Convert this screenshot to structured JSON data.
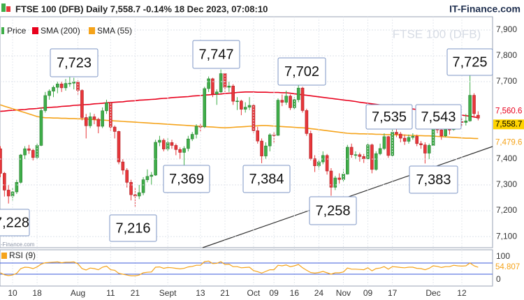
{
  "chart_data": {
    "type": "candlestick",
    "title": "FTSE 100 (DFB) Daily 7,558.7 -0.14% 18 Dec 2023, 07:08:10",
    "source": "IT-Finance.com",
    "watermark": "FTSE 100 (DFB)",
    "watermark_small": "-Finance.com",
    "price_name": "Price",
    "up_color": "#3fae49",
    "down_color": "#e8363a",
    "categories": [
      null,
      null,
      null,
      "10",
      null,
      null,
      null,
      null,
      null,
      "18",
      null,
      null,
      null,
      null,
      null,
      null,
      null,
      null,
      null,
      "Aug",
      null,
      null,
      null,
      null,
      null,
      null,
      null,
      "11",
      null,
      null,
      null,
      null,
      null,
      "21",
      null,
      null,
      null,
      null,
      null,
      null,
      null,
      "Sept",
      null,
      null,
      null,
      null,
      null,
      null,
      null,
      "13",
      null,
      null,
      null,
      null,
      null,
      "21",
      null,
      null,
      null,
      null,
      null,
      null,
      "Oct",
      null,
      null,
      null,
      null,
      "09",
      null,
      null,
      null,
      null,
      "16",
      null,
      null,
      null,
      null,
      null,
      "24",
      null,
      null,
      null,
      null,
      null,
      "Nov",
      null,
      null,
      null,
      null,
      null,
      "09",
      null,
      null,
      null,
      null,
      null,
      "17",
      null,
      null,
      null,
      null,
      null,
      null,
      null,
      null,
      null,
      "Dec",
      null,
      null,
      null,
      null,
      null,
      null,
      "12",
      null,
      null,
      null,
      null
    ],
    "open": [
      7440,
      7345,
      7280,
      7257,
      7273,
      7310,
      7416,
      7440,
      7434,
      7406,
      7453,
      7588,
      7646,
      7663,
      7678,
      7691,
      7676,
      7693,
      7694,
      7699,
      7666,
      7561,
      7529,
      7564,
      7554,
      7527,
      7587,
      7618,
      7524,
      7507,
      7389,
      7357,
      7310,
      7262,
      7257,
      7270,
      7320,
      7333,
      7338,
      7465,
      7473,
      7439,
      7464,
      7453,
      7437,
      7426,
      7441,
      7478,
      7496,
      7527,
      7525,
      7673,
      7711,
      7652,
      7660,
      7731,
      7678,
      7683,
      7624,
      7625,
      7593,
      7601,
      7608,
      7510,
      7470,
      7412,
      7451,
      7494,
      7492,
      7628,
      7620,
      7644,
      7599,
      7630,
      7675,
      7588,
      7499,
      7402,
      7374,
      7389,
      7414,
      7354,
      7291,
      7327,
      7321,
      7342,
      7446,
      7417,
      7417,
      7410,
      7401,
      7455,
      7360,
      7421,
      7441,
      7487,
      7414,
      7504,
      7497,
      7481,
      7469,
      7484,
      7488,
      7460,
      7455,
      7423,
      7453,
      7529,
      7513,
      7490,
      7515,
      7514,
      7555,
      7545,
      7542,
      7548,
      7647,
      7570
    ],
    "high": [
      7450,
      7350,
      7300,
      7290,
      7320,
      7420,
      7450,
      7455,
      7440,
      7460,
      7600,
      7660,
      7670,
      7685,
      7700,
      7700,
      7710,
      7723,
      7715,
      7705,
      7670,
      7575,
      7580,
      7575,
      7560,
      7600,
      7630,
      7620,
      7530,
      7510,
      7400,
      7365,
      7320,
      7290,
      7300,
      7330,
      7360,
      7350,
      7475,
      7490,
      7480,
      7480,
      7475,
      7460,
      7445,
      7450,
      7490,
      7505,
      7535,
      7540,
      7680,
      7720,
      7715,
      7670,
      7747,
      7735,
      7700,
      7690,
      7640,
      7630,
      7620,
      7640,
      7615,
      7525,
      7480,
      7465,
      7500,
      7505,
      7635,
      7650,
      7665,
      7650,
      7640,
      7702,
      7680,
      7595,
      7510,
      7415,
      7400,
      7430,
      7420,
      7365,
      7335,
      7345,
      7360,
      7455,
      7460,
      7430,
      7425,
      7420,
      7465,
      7460,
      7430,
      7460,
      7500,
      7490,
      7515,
      7535,
      7505,
      7495,
      7495,
      7500,
      7495,
      7470,
      7465,
      7460,
      7543,
      7535,
      7520,
      7525,
      7530,
      7565,
      7565,
      7560,
      7575,
      7725,
      7655,
      7585
    ],
    "low": [
      7330,
      7255,
      7228,
      7240,
      7265,
      7305,
      7400,
      7420,
      7395,
      7400,
      7450,
      7580,
      7630,
      7640,
      7655,
      7660,
      7665,
      7680,
      7670,
      7650,
      7550,
      7480,
      7520,
      7535,
      7500,
      7520,
      7575,
      7510,
      7480,
      7380,
      7340,
      7290,
      7240,
      7216,
      7245,
      7260,
      7310,
      7300,
      7335,
      7450,
      7430,
      7430,
      7440,
      7415,
      7400,
      7369,
      7430,
      7470,
      7480,
      7505,
      7520,
      7660,
      7640,
      7610,
      7655,
      7660,
      7660,
      7610,
      7590,
      7570,
      7580,
      7590,
      7500,
      7460,
      7384,
      7400,
      7430,
      7460,
      7490,
      7605,
      7610,
      7590,
      7590,
      7620,
      7580,
      7490,
      7395,
      7350,
      7360,
      7380,
      7340,
      7258,
      7280,
      7305,
      7310,
      7340,
      7405,
      7400,
      7390,
      7385,
      7395,
      7345,
      7355,
      7415,
      7435,
      7405,
      7410,
      7485,
      7465,
      7455,
      7460,
      7475,
      7450,
      7440,
      7383,
      7400,
      7450,
      7500,
      7475,
      7485,
      7495,
      7510,
      7530,
      7525,
      7530,
      7545,
      7560,
      7550
    ],
    "close": [
      7345,
      7280,
      7257,
      7273,
      7310,
      7416,
      7440,
      7434,
      7406,
      7453,
      7588,
      7646,
      7663,
      7678,
      7691,
      7676,
      7693,
      7694,
      7699,
      7666,
      7561,
      7529,
      7564,
      7554,
      7527,
      7587,
      7618,
      7524,
      7507,
      7389,
      7357,
      7310,
      7262,
      7257,
      7270,
      7320,
      7333,
      7338,
      7465,
      7473,
      7439,
      7464,
      7453,
      7437,
      7426,
      7441,
      7478,
      7496,
      7527,
      7525,
      7673,
      7711,
      7652,
      7660,
      7731,
      7678,
      7683,
      7624,
      7625,
      7593,
      7601,
      7608,
      7510,
      7470,
      7412,
      7451,
      7494,
      7492,
      7628,
      7620,
      7644,
      7599,
      7630,
      7675,
      7588,
      7499,
      7402,
      7374,
      7389,
      7414,
      7354,
      7291,
      7327,
      7321,
      7342,
      7446,
      7417,
      7417,
      7410,
      7401,
      7455,
      7360,
      7421,
      7441,
      7487,
      7414,
      7504,
      7497,
      7481,
      7469,
      7484,
      7488,
      7460,
      7455,
      7423,
      7453,
      7529,
      7513,
      7490,
      7515,
      7514,
      7555,
      7545,
      7542,
      7548,
      7647,
      7576,
      7558.7
    ],
    "series": [
      {
        "name": "SMA (200)",
        "color": "#e8001c",
        "values": [
          7585,
          7586,
          7588,
          7589,
          7590,
          7591,
          7592,
          7594,
          7595,
          7596,
          7598,
          7599,
          7600,
          7601,
          7602,
          7604,
          7605,
          7606,
          7608,
          7609,
          7610,
          7611,
          7612,
          7614,
          7615,
          7616,
          7618,
          7619,
          7620,
          7621,
          7622,
          7624,
          7625,
          7626,
          7628,
          7629,
          7630,
          7631,
          7632,
          7634,
          7635,
          7636,
          7638,
          7639,
          7640,
          7641,
          7642,
          7644,
          7645,
          7646,
          7648,
          7649,
          7650,
          7651,
          7652,
          7654,
          7655,
          7656,
          7658,
          7659,
          7660,
          7660,
          7660,
          7659,
          7659,
          7659,
          7658,
          7658,
          7658,
          7657,
          7657,
          7655,
          7653,
          7651,
          7649,
          7647,
          7645,
          7643,
          7641,
          7639,
          7637,
          7635,
          7633,
          7631,
          7629,
          7627,
          7625,
          7623,
          7620,
          7618,
          7616,
          7614,
          7612,
          7610,
          7608,
          7606,
          7604,
          7602,
          7600,
          7598,
          7596,
          7594,
          7592,
          7590,
          7588,
          7586,
          7584,
          7582,
          7580,
          7578,
          7576,
          7574,
          7572,
          7570,
          7568,
          7566,
          7563,
          7560.6
        ]
      },
      {
        "name": "SMA (55)",
        "color": "#f5a31a",
        "values": [
          7610,
          7605,
          7600,
          7595,
          7590,
          7585,
          7580,
          7575,
          7570,
          7565,
          7562,
          7560,
          7560,
          7559,
          7559,
          7558,
          7558,
          7557,
          7557,
          7556,
          7556,
          7555,
          7554,
          7553,
          7552,
          7551,
          7550,
          7549,
          7548,
          7547,
          7546,
          7545,
          7544,
          7543,
          7542,
          7541,
          7540,
          7539,
          7538,
          7537,
          7536,
          7535,
          7534,
          7533,
          7532,
          7531,
          7530,
          7529,
          7528,
          7527,
          7526,
          7525,
          7524,
          7523,
          7522,
          7521,
          7522,
          7523,
          7524,
          7525,
          7526,
          7527,
          7528,
          7529,
          7530,
          7530,
          7529,
          7528,
          7527,
          7526,
          7525,
          7524,
          7523,
          7522,
          7521,
          7520,
          7518,
          7516,
          7514,
          7512,
          7510,
          7508,
          7506,
          7504,
          7502,
          7500,
          7499,
          7499,
          7498,
          7498,
          7497,
          7497,
          7496,
          7496,
          7495,
          7495,
          7494,
          7494,
          7493,
          7493,
          7492,
          7492,
          7491,
          7491,
          7490,
          7490,
          7489,
          7488,
          7487,
          7486,
          7485,
          7484,
          7483,
          7482,
          7481,
          7481,
          7480,
          7479.6
        ]
      }
    ],
    "ylim": [
      7057,
      7935
    ],
    "yticks": [
      {
        "value": 7100,
        "label": "7,100"
      },
      {
        "value": 7200,
        "label": "7,200"
      },
      {
        "value": 7300,
        "label": "7,300"
      },
      {
        "value": 7400,
        "label": "7,400"
      },
      {
        "value": 7700,
        "label": "7,700"
      },
      {
        "value": 7800,
        "label": "7,800"
      },
      {
        "value": 7900,
        "label": "7,900"
      }
    ],
    "grid": true,
    "price_tags": [
      {
        "value": 7560.6,
        "label": "7,560.6",
        "color": "#e8001c",
        "background": "#ffffff"
      },
      {
        "value": 7558.7,
        "label": "7,558.7",
        "color": "#000000",
        "background": "#ffd400"
      },
      {
        "value": 7479.6,
        "label": "7,479.6",
        "color": "#f5a31a",
        "background": "#ffffff"
      }
    ],
    "annotations": [
      "7,228",
      "7,723",
      "7,216",
      "7,369",
      "7,747",
      "7,384",
      "7,702",
      "7,258",
      "7,535",
      "7,543",
      "7,383",
      "7,725"
    ],
    "rsi": {
      "name": "RSI (9)",
      "color": "#f5a31a",
      "level_color": "#3b5bdb",
      "ylim": [
        0,
        100
      ],
      "yticks": [
        0,
        100
      ],
      "levels": [
        70,
        30
      ],
      "tag": 54.807,
      "values": [
        35,
        28,
        25,
        27,
        33,
        50,
        55,
        54,
        50,
        56,
        66,
        71,
        72,
        73,
        74,
        71,
        73,
        73,
        74,
        67,
        50,
        45,
        52,
        50,
        46,
        55,
        59,
        46,
        44,
        33,
        30,
        27,
        24,
        24,
        27,
        35,
        37,
        38,
        55,
        56,
        51,
        54,
        53,
        51,
        49,
        51,
        56,
        58,
        62,
        62,
        75,
        77,
        68,
        69,
        75,
        65,
        66,
        57,
        57,
        53,
        54,
        55,
        43,
        39,
        34,
        40,
        46,
        46,
        62,
        60,
        63,
        57,
        60,
        65,
        53,
        44,
        36,
        34,
        36,
        40,
        35,
        30,
        35,
        35,
        38,
        52,
        48,
        48,
        47,
        46,
        53,
        42,
        50,
        52,
        57,
        48,
        57,
        56,
        54,
        53,
        55,
        55,
        51,
        50,
        46,
        51,
        60,
        58,
        54,
        57,
        57,
        62,
        60,
        59,
        60,
        70,
        60,
        54.807
      ]
    }
  }
}
